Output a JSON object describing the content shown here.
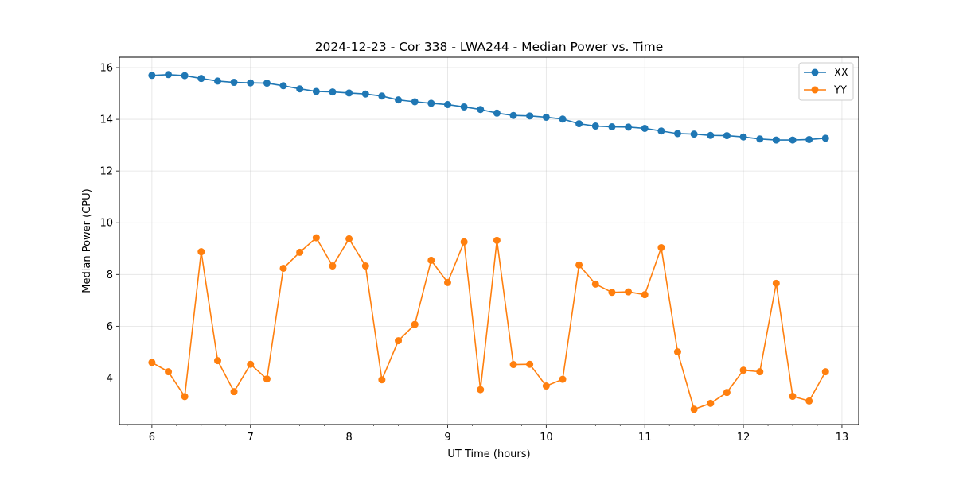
{
  "chart_data": {
    "type": "line",
    "title": "2024-12-23 - Cor 338 - LWA244 - Median Power vs. Time",
    "xlabel": "UT Time (hours)",
    "ylabel": "Median Power (CPU)",
    "xlim": [
      5.67,
      13.17
    ],
    "ylim": [
      2.2,
      16.4
    ],
    "xticks": [
      6,
      7,
      8,
      9,
      10,
      11,
      12,
      13
    ],
    "xticks_minor": [
      5.75,
      6.25,
      6.5,
      6.75,
      7.25,
      7.5,
      7.75,
      8.25,
      8.5,
      8.75,
      9.25,
      9.5,
      9.75,
      10.25,
      10.5,
      10.75,
      11.25,
      11.5,
      11.75,
      12.25,
      12.5,
      12.75,
      13.25
    ],
    "yticks": [
      4,
      6,
      8,
      10,
      12,
      14,
      16
    ],
    "grid": true,
    "legend_position": "top-right",
    "x": [
      6.0,
      6.167,
      6.333,
      6.5,
      6.667,
      6.833,
      7.0,
      7.167,
      7.333,
      7.5,
      7.667,
      7.833,
      8.0,
      8.167,
      8.333,
      8.5,
      8.667,
      8.833,
      9.0,
      9.167,
      9.333,
      9.5,
      9.667,
      9.833,
      10.0,
      10.167,
      10.333,
      10.5,
      10.667,
      10.833,
      11.0,
      11.167,
      11.333,
      11.5,
      11.667,
      11.833,
      12.0,
      12.167,
      12.333,
      12.5,
      12.667,
      12.833
    ],
    "series": [
      {
        "name": "XX",
        "color": "#1f77b4",
        "values": [
          15.7,
          15.73,
          15.69,
          15.58,
          15.48,
          15.43,
          15.41,
          15.4,
          15.3,
          15.18,
          15.08,
          15.06,
          15.02,
          14.98,
          14.9,
          14.75,
          14.68,
          14.62,
          14.57,
          14.48,
          14.38,
          14.24,
          14.15,
          14.13,
          14.08,
          14.01,
          13.83,
          13.74,
          13.71,
          13.7,
          13.65,
          13.55,
          13.45,
          13.43,
          13.38,
          13.37,
          13.32,
          13.24,
          13.2,
          13.2,
          13.22,
          13.27
        ]
      },
      {
        "name": "YY",
        "color": "#ff7f0e",
        "values": [
          4.6,
          4.24,
          3.28,
          8.88,
          4.67,
          3.47,
          4.53,
          3.96,
          8.24,
          8.86,
          9.42,
          8.33,
          9.38,
          8.33,
          3.93,
          5.44,
          6.07,
          8.55,
          7.69,
          9.26,
          3.55,
          9.32,
          4.52,
          4.53,
          3.69,
          3.95,
          8.37,
          7.63,
          7.31,
          7.33,
          7.22,
          9.04,
          5.01,
          2.79,
          3.02,
          3.44,
          4.3,
          4.24,
          7.66,
          3.29,
          3.11,
          4.24
        ]
      }
    ]
  }
}
